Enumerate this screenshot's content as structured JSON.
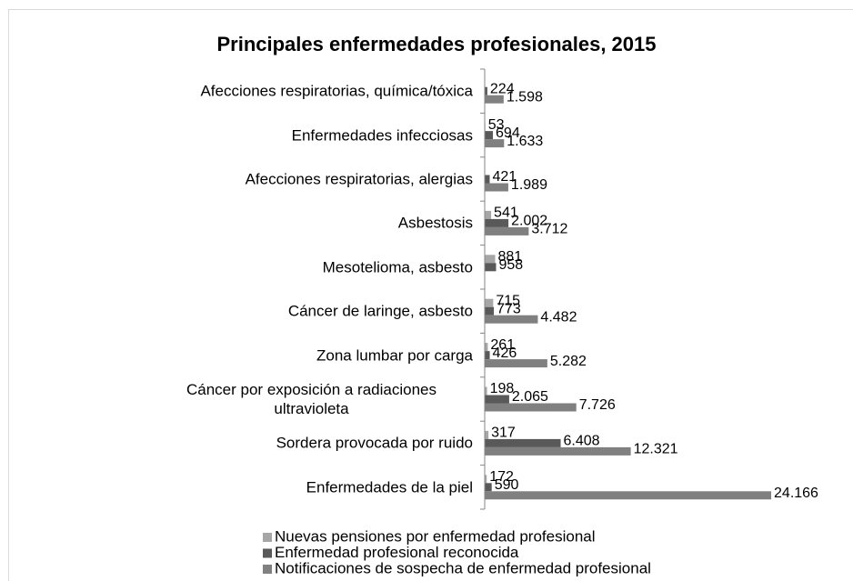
{
  "chart_data": {
    "type": "bar",
    "orientation": "horizontal",
    "title": "Principales enfermedades profesionales, 2015",
    "categories": [
      "Afecciones respiratorias, química/tóxica",
      "Enfermedades infecciosas",
      "Afecciones respiratorias, alergias",
      "Asbestosis",
      "Mesotelioma, asbesto",
      "Cáncer de laringe, asbesto",
      "Zona lumbar por carga",
      "Cáncer por exposición a radiaciones ultravioleta",
      "Sordera provocada por ruido",
      "Enfermedades de la piel"
    ],
    "series": [
      {
        "name": "Nuevas pensiones por enfermedad profesional",
        "color": "#a6a6a6",
        "values": [
          null,
          53,
          null,
          541,
          881,
          715,
          261,
          198,
          317,
          172
        ]
      },
      {
        "name": "Enfermedad profesional reconocida",
        "color": "#595959",
        "values": [
          224,
          694,
          421,
          2002,
          958,
          773,
          426,
          2065,
          6408,
          590
        ],
        "value_labels": [
          "224",
          "694",
          "421",
          "2.002",
          "958",
          "773",
          "426",
          "2.065",
          "6.408",
          "590"
        ]
      },
      {
        "name": "Notificaciones de sospecha de enfermedad profesional",
        "color": "#808080",
        "values": [
          1598,
          1633,
          1989,
          3712,
          null,
          4482,
          5282,
          7726,
          12321,
          24166
        ],
        "value_labels": [
          "1.598",
          "1.633",
          "1.989",
          "3.712",
          null,
          "4.482",
          "5.282",
          "7.726",
          "12.321",
          "24.166"
        ]
      }
    ],
    "xlim": [
      0,
      28000
    ],
    "legend": "bottom"
  }
}
